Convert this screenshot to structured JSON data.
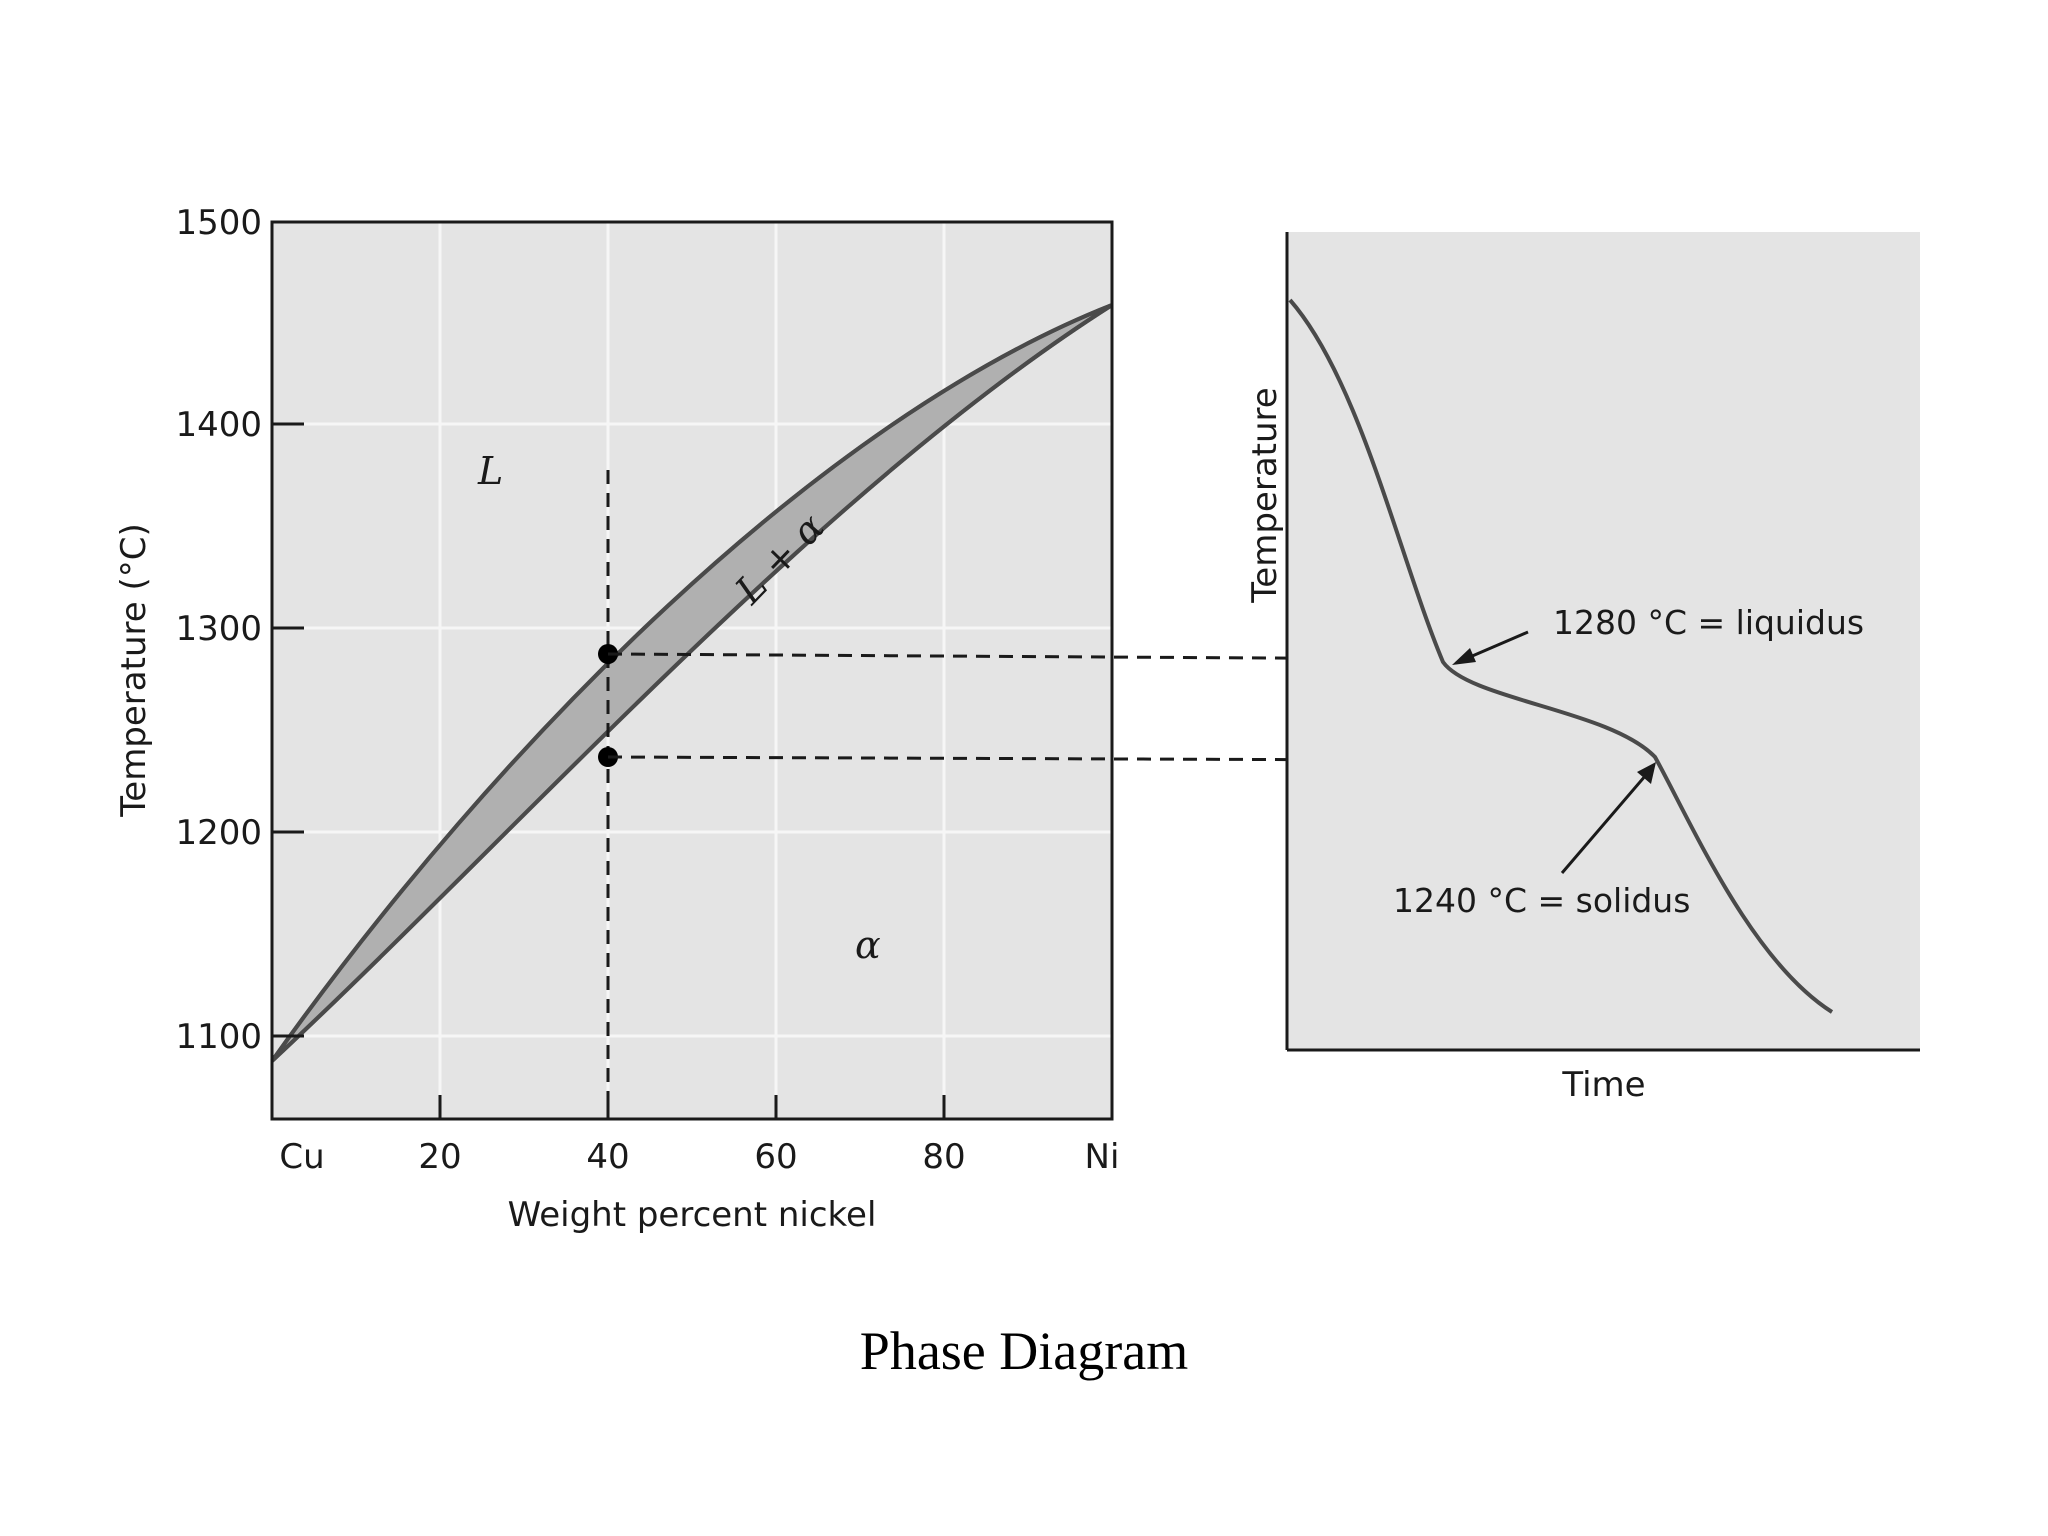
{
  "caption": "Phase Diagram",
  "phase_diagram": {
    "y_axis_label": "Temperature (°C)",
    "x_axis_label": "Weight percent nickel",
    "y_ticks": [
      "1100",
      "1200",
      "1300",
      "1400",
      "1500"
    ],
    "x_ticks": [
      "Cu",
      "20",
      "40",
      "60",
      "80",
      "Ni"
    ],
    "phase_labels": {
      "liquid": "L",
      "two_phase": "L + α",
      "solid": "α"
    }
  },
  "cooling_curve": {
    "y_axis_label": "Temperature",
    "x_axis_label": "Time",
    "liquidus_annotation": "1280 °C = liquidus",
    "solidus_annotation": "1240 °C = solidus"
  },
  "colors": {
    "page_background": "#ffffff",
    "plot_background": "#e4e4e4",
    "two_phase_region": "#b0b0b0",
    "line": "#4a4a4a"
  }
}
